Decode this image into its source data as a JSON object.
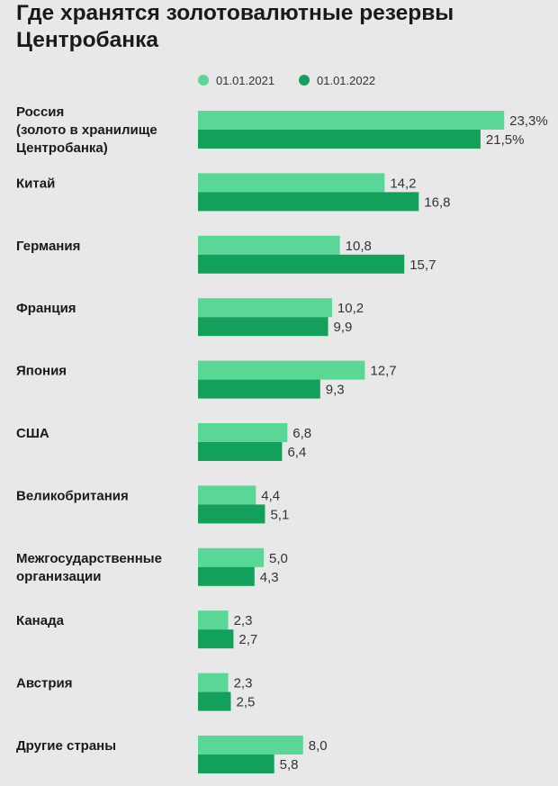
{
  "header": {
    "title_line1": "Где хранятся золотовалютные резервы",
    "title_line2": "Центробанка"
  },
  "colors": {
    "series_2021": "#5ad697",
    "series_2022": "#12a05a",
    "background": "#e8e8e8"
  },
  "chart_data": {
    "type": "bar",
    "orientation": "horizontal",
    "title": "Где хранятся золотовалютные резервы Центробанка",
    "legend_position": "top",
    "categories": [
      [
        "Россия",
        "(золото в хранилище",
        "Центробанка)"
      ],
      [
        "Китай"
      ],
      [
        "Германия"
      ],
      [
        "Франция"
      ],
      [
        "Япония"
      ],
      [
        "США"
      ],
      [
        "Великобритания"
      ],
      [
        "Межгосударственные",
        "организации"
      ],
      [
        "Канада"
      ],
      [
        "Австрия"
      ],
      [
        "Другие страны"
      ]
    ],
    "series": [
      {
        "name": "01.01.2021",
        "values": [
          23.3,
          14.2,
          10.8,
          10.2,
          12.7,
          6.8,
          4.4,
          5.0,
          2.3,
          2.3,
          8.0
        ],
        "labels": [
          "23,3%",
          "14,2",
          "10,8",
          "10,2",
          "12,7",
          "6,8",
          "4,4",
          "5,0",
          "2,3",
          "2,3",
          "8,0"
        ]
      },
      {
        "name": "01.01.2022",
        "values": [
          21.5,
          16.8,
          15.7,
          9.9,
          9.3,
          6.4,
          5.1,
          4.3,
          2.7,
          2.5,
          5.8
        ],
        "labels": [
          "21,5%",
          "16,8",
          "15,7",
          "9,9",
          "9,3",
          "6,4",
          "5,1",
          "4,3",
          "2,7",
          "2,5",
          "5,8"
        ]
      }
    ],
    "unit": "%",
    "grid": false
  }
}
